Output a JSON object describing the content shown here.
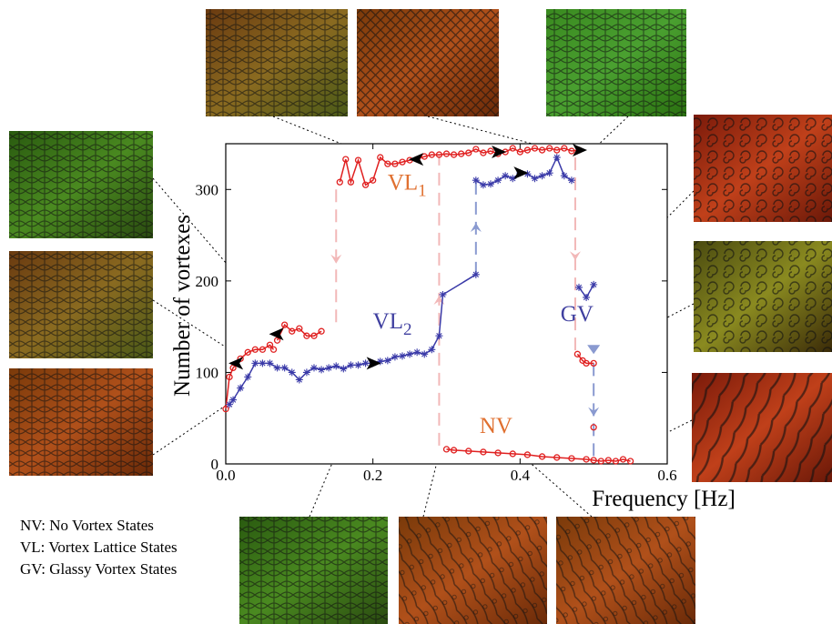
{
  "chart_data": {
    "type": "scatter",
    "xlabel": "Frequency [Hz]",
    "ylabel": "Number of vortexes",
    "xlim": [
      0,
      0.6
    ],
    "ylim": [
      0,
      350
    ],
    "x_ticks": [
      "0.0",
      "0.2",
      "0.4",
      "0.6"
    ],
    "y_ticks": [
      "0",
      "100",
      "200",
      "300"
    ],
    "grid": false,
    "series": [
      {
        "color": "#e02020",
        "marker": "circle",
        "segments": [
          [
            [
              0.0,
              60
            ],
            [
              0.005,
              95
            ],
            [
              0.01,
              105
            ],
            [
              0.02,
              115
            ],
            [
              0.03,
              122
            ],
            [
              0.04,
              125
            ],
            [
              0.05,
              125
            ],
            [
              0.06,
              130
            ],
            [
              0.065,
              125
            ]
          ],
          [
            [
              0.07,
              135
            ],
            [
              0.08,
              152
            ],
            [
              0.09,
              145
            ],
            [
              0.1,
              148
            ],
            [
              0.11,
              140
            ],
            [
              0.12,
              140
            ],
            [
              0.13,
              145
            ]
          ],
          [
            [
              0.155,
              308
            ],
            [
              0.163,
              333
            ],
            [
              0.17,
              308
            ],
            [
              0.18,
              332
            ],
            [
              0.19,
              305
            ],
            [
              0.2,
              310
            ],
            [
              0.21,
              335
            ],
            [
              0.22,
              328
            ],
            [
              0.23,
              328
            ],
            [
              0.24,
              330
            ],
            [
              0.25,
              332
            ],
            [
              0.26,
              333
            ],
            [
              0.27,
              336
            ],
            [
              0.28,
              338
            ],
            [
              0.29,
              338
            ],
            [
              0.3,
              339
            ],
            [
              0.31,
              338
            ],
            [
              0.32,
              339
            ],
            [
              0.33,
              340
            ],
            [
              0.34,
              344
            ],
            [
              0.35,
              340
            ],
            [
              0.36,
              342
            ],
            [
              0.37,
              339
            ],
            [
              0.38,
              341
            ],
            [
              0.39,
              345
            ],
            [
              0.4,
              341
            ],
            [
              0.41,
              343
            ],
            [
              0.42,
              345
            ],
            [
              0.43,
              343
            ],
            [
              0.44,
              345
            ],
            [
              0.45,
              343
            ],
            [
              0.46,
              345
            ],
            [
              0.47,
              342
            ],
            [
              0.48,
              343
            ]
          ],
          [
            [
              0.478,
              120
            ],
            [
              0.485,
              113
            ],
            [
              0.49,
              110
            ],
            [
              0.5,
              110
            ]
          ],
          [
            [
              0.5,
              40
            ]
          ],
          [
            [
              0.3,
              16
            ],
            [
              0.31,
              15
            ],
            [
              0.33,
              14
            ],
            [
              0.35,
              13
            ],
            [
              0.37,
              12
            ],
            [
              0.39,
              11
            ],
            [
              0.41,
              10
            ],
            [
              0.43,
              8
            ],
            [
              0.45,
              7
            ],
            [
              0.47,
              6
            ],
            [
              0.49,
              5
            ],
            [
              0.5,
              4
            ],
            [
              0.51,
              3
            ],
            [
              0.52,
              4
            ],
            [
              0.53,
              3
            ],
            [
              0.54,
              5
            ],
            [
              0.55,
              3
            ]
          ]
        ]
      },
      {
        "color": "#3a3aa8",
        "marker": "asterisk",
        "segments": [
          [
            [
              0.005,
              65
            ],
            [
              0.01,
              70
            ],
            [
              0.02,
              83
            ],
            [
              0.03,
              95
            ],
            [
              0.04,
              110
            ],
            [
              0.05,
              110
            ],
            [
              0.06,
              110
            ],
            [
              0.07,
              105
            ],
            [
              0.08,
              105
            ],
            [
              0.09,
              100
            ],
            [
              0.1,
              92
            ],
            [
              0.11,
              100
            ],
            [
              0.12,
              105
            ],
            [
              0.13,
              103
            ],
            [
              0.14,
              105
            ],
            [
              0.15,
              107
            ],
            [
              0.16,
              104
            ],
            [
              0.17,
              108
            ],
            [
              0.18,
              108
            ],
            [
              0.19,
              110
            ],
            [
              0.2,
              110
            ],
            [
              0.21,
              112
            ],
            [
              0.22,
              113
            ],
            [
              0.23,
              117
            ],
            [
              0.24,
              118
            ],
            [
              0.25,
              120
            ],
            [
              0.26,
              122
            ],
            [
              0.27,
              120
            ],
            [
              0.28,
              125
            ],
            [
              0.29,
              140
            ],
            [
              0.295,
              185
            ],
            [
              0.34,
              207
            ]
          ],
          [
            [
              0.34,
              310
            ],
            [
              0.35,
              305
            ],
            [
              0.36,
              306
            ],
            [
              0.37,
              310
            ],
            [
              0.38,
              315
            ],
            [
              0.39,
              312
            ],
            [
              0.4,
              318
            ],
            [
              0.41,
              317
            ],
            [
              0.42,
              312
            ],
            [
              0.43,
              315
            ],
            [
              0.44,
              318
            ],
            [
              0.45,
              335
            ],
            [
              0.46,
              315
            ],
            [
              0.47,
              310
            ]
          ],
          [
            [
              0.48,
              193
            ],
            [
              0.49,
              182
            ],
            [
              0.5,
              196
            ]
          ]
        ]
      }
    ],
    "annotations": [
      {
        "text": "VL",
        "sub": "1",
        "x": 0.22,
        "y": 300
      },
      {
        "text": "VL",
        "sub": "2",
        "x": 0.2,
        "y": 148
      },
      {
        "text": "GV",
        "x": 0.455,
        "y": 156
      },
      {
        "text": "NV",
        "x": 0.345,
        "y": 34
      }
    ],
    "transitions": [
      {
        "x": 0.15,
        "from": 300,
        "to": 148,
        "direction": "down"
      },
      {
        "x": 0.29,
        "from": 20,
        "to": 338,
        "direction": "up"
      },
      {
        "x": 0.34,
        "from": 207,
        "to": 310,
        "direction": "up"
      },
      {
        "x": 0.475,
        "from": 335,
        "to": 120,
        "direction": "down"
      },
      {
        "x": 0.5,
        "from": 110,
        "to": 4,
        "direction": "down"
      }
    ]
  },
  "legend": {
    "nv": "NV: No Vortex States",
    "vl": "VL: Vortex  Lattice States",
    "gv": "GV: Glassy Vortex States"
  },
  "colors": {
    "red_series": "#e02020",
    "blue_series": "#3a3aa8",
    "annotation_orange": "#e07030",
    "annotation_blue": "#4040a0",
    "transition_pink": "#f2b8b8",
    "transition_blue": "#8a9ad0"
  }
}
